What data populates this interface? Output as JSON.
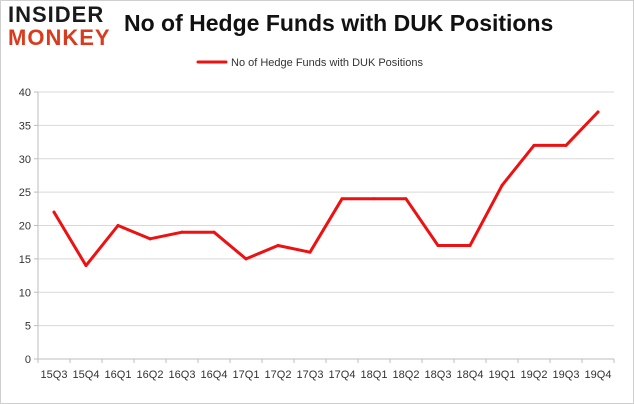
{
  "brand": {
    "line1": "INSIDER",
    "line2": "MONKEY"
  },
  "chart_data": {
    "type": "line",
    "title": "No of Hedge Funds with DUK Positions",
    "xlabel": "",
    "ylabel": "",
    "categories": [
      "15Q3",
      "15Q4",
      "16Q1",
      "16Q2",
      "16Q3",
      "16Q4",
      "17Q1",
      "17Q2",
      "17Q3",
      "17Q4",
      "18Q1",
      "18Q2",
      "18Q3",
      "18Q4",
      "19Q1",
      "19Q2",
      "19Q3",
      "19Q4"
    ],
    "series": [
      {
        "name": "No of Hedge Funds with DUK Positions",
        "values": [
          22,
          14,
          20,
          18,
          19,
          19,
          15,
          17,
          16,
          24,
          24,
          24,
          17,
          17,
          26,
          32,
          32,
          37
        ],
        "color": "#ee1111"
      }
    ],
    "ylim": [
      0,
      40
    ],
    "yticks": [
      0,
      5,
      10,
      15,
      20,
      25,
      30,
      35,
      40
    ],
    "grid": true,
    "legend": "top-center"
  }
}
